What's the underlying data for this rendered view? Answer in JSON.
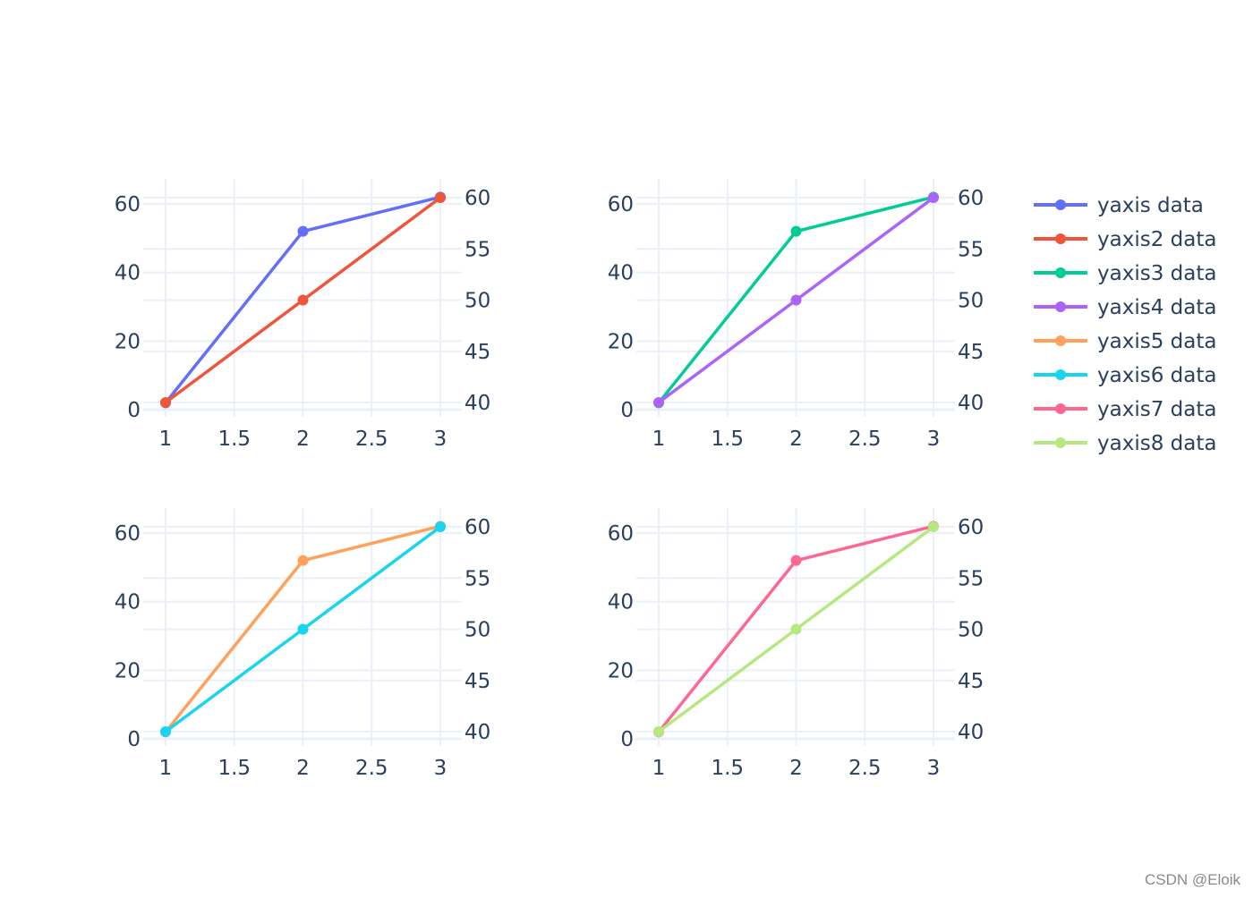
{
  "chart_data": [
    {
      "type": "line",
      "panel": "top-left",
      "x": [
        1,
        2,
        3
      ],
      "xticks": [
        "1",
        "1.5",
        "2",
        "2.5",
        "3"
      ],
      "yaxis_left": {
        "ticks": [
          "0",
          "20",
          "40",
          "60"
        ],
        "range": [
          -1.5,
          67
        ]
      },
      "yaxis_right": {
        "ticks": [
          "40",
          "45",
          "50",
          "55",
          "60"
        ],
        "range": [
          38.9,
          61
        ]
      },
      "series": [
        {
          "name": "yaxis data",
          "axis": "left",
          "color": "#636efa",
          "values": [
            2,
            52,
            62
          ]
        },
        {
          "name": "yaxis2 data",
          "axis": "right",
          "color": "#EF553B",
          "values": [
            40,
            50,
            60
          ]
        }
      ]
    },
    {
      "type": "line",
      "panel": "top-right",
      "x": [
        1,
        2,
        3
      ],
      "xticks": [
        "1",
        "1.5",
        "2",
        "2.5",
        "3"
      ],
      "yaxis_left": {
        "ticks": [
          "0",
          "20",
          "40",
          "60"
        ],
        "range": [
          -1.5,
          67
        ]
      },
      "yaxis_right": {
        "ticks": [
          "40",
          "45",
          "50",
          "55",
          "60"
        ],
        "range": [
          38.9,
          61
        ]
      },
      "series": [
        {
          "name": "yaxis3 data",
          "axis": "left",
          "color": "#00cc96",
          "values": [
            2,
            52,
            62
          ]
        },
        {
          "name": "yaxis4 data",
          "axis": "right",
          "color": "#ab63fa",
          "values": [
            40,
            50,
            60
          ]
        }
      ]
    },
    {
      "type": "line",
      "panel": "bottom-left",
      "x": [
        1,
        2,
        3
      ],
      "xticks": [
        "1",
        "1.5",
        "2",
        "2.5",
        "3"
      ],
      "yaxis_left": {
        "ticks": [
          "0",
          "20",
          "40",
          "60"
        ],
        "range": [
          -1.5,
          67
        ]
      },
      "yaxis_right": {
        "ticks": [
          "40",
          "45",
          "50",
          "55",
          "60"
        ],
        "range": [
          38.9,
          61
        ]
      },
      "series": [
        {
          "name": "yaxis5 data",
          "axis": "left",
          "color": "#FFA15A",
          "values": [
            2,
            52,
            62
          ]
        },
        {
          "name": "yaxis6 data",
          "axis": "right",
          "color": "#19d3f3",
          "values": [
            40,
            50,
            60
          ]
        }
      ]
    },
    {
      "type": "line",
      "panel": "bottom-right",
      "x": [
        1,
        2,
        3
      ],
      "xticks": [
        "1",
        "1.5",
        "2",
        "2.5",
        "3"
      ],
      "yaxis_left": {
        "ticks": [
          "0",
          "20",
          "40",
          "60"
        ],
        "range": [
          -1.5,
          67
        ]
      },
      "yaxis_right": {
        "ticks": [
          "40",
          "45",
          "50",
          "55",
          "60"
        ],
        "range": [
          38.9,
          61
        ]
      },
      "series": [
        {
          "name": "yaxis7 data",
          "axis": "left",
          "color": "#FF6692",
          "values": [
            2,
            52,
            62
          ]
        },
        {
          "name": "yaxis8 data",
          "axis": "right",
          "color": "#B6E880",
          "values": [
            40,
            50,
            60
          ]
        }
      ]
    }
  ],
  "legend": {
    "position": "right",
    "items": [
      {
        "label": "yaxis data",
        "color": "#636efa"
      },
      {
        "label": "yaxis2 data",
        "color": "#EF553B"
      },
      {
        "label": "yaxis3 data",
        "color": "#00cc96"
      },
      {
        "label": "yaxis4 data",
        "color": "#ab63fa"
      },
      {
        "label": "yaxis5 data",
        "color": "#FFA15A"
      },
      {
        "label": "yaxis6 data",
        "color": "#19d3f3"
      },
      {
        "label": "yaxis7 data",
        "color": "#FF6692"
      },
      {
        "label": "yaxis8 data",
        "color": "#B6E880"
      }
    ]
  },
  "style": {
    "grid_color": "#ebf0f8",
    "zero_line_color": "#ebf0f8",
    "tick_text_color": "#2a3f5f",
    "background": "#ffffff"
  },
  "watermark": "CSDN @Eloik"
}
